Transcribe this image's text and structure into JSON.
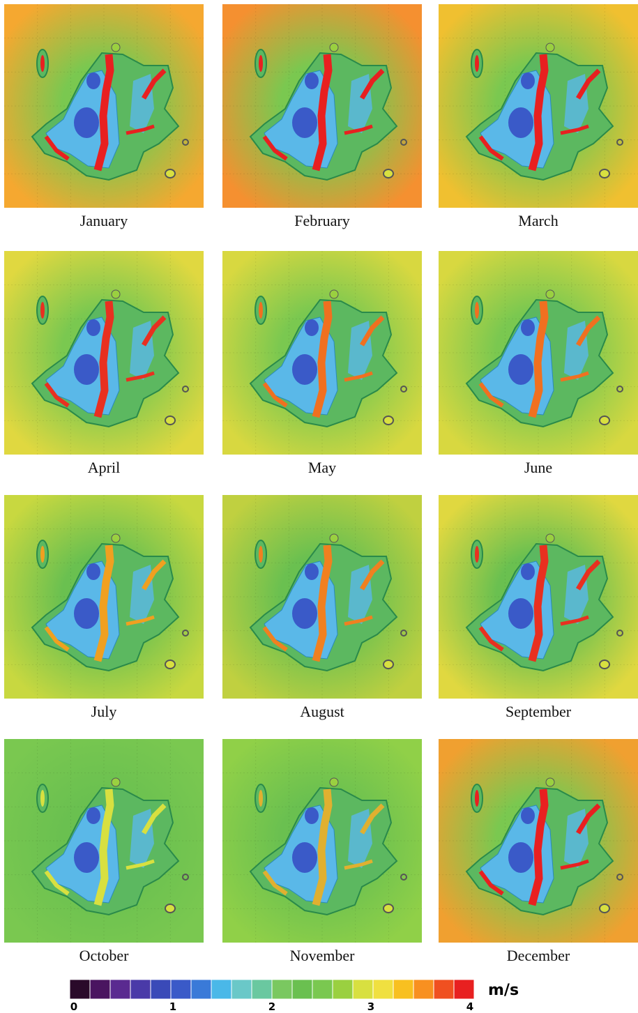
{
  "panels": [
    {
      "label": "January"
    },
    {
      "label": "February"
    },
    {
      "label": "March"
    },
    {
      "label": "April"
    },
    {
      "label": "May"
    },
    {
      "label": "June"
    },
    {
      "label": "July"
    },
    {
      "label": "August"
    },
    {
      "label": "September"
    },
    {
      "label": "October"
    },
    {
      "label": "November"
    },
    {
      "label": "December"
    }
  ],
  "colorbar": {
    "ticks": [
      0,
      1,
      2,
      3,
      4
    ],
    "unit": "m/s",
    "colors": [
      "#2a0a2a",
      "#4a1560",
      "#5a2a90",
      "#4a3aa8",
      "#3a4ab8",
      "#3a5ac8",
      "#3a7ad8",
      "#4ab8e8",
      "#6ac8c8",
      "#6ac8a0",
      "#7ac860",
      "#6ac050",
      "#7ac850",
      "#9ad040",
      "#d8e040",
      "#f0e040",
      "#f8c020",
      "#f89020",
      "#f05020",
      "#e82020"
    ]
  }
}
